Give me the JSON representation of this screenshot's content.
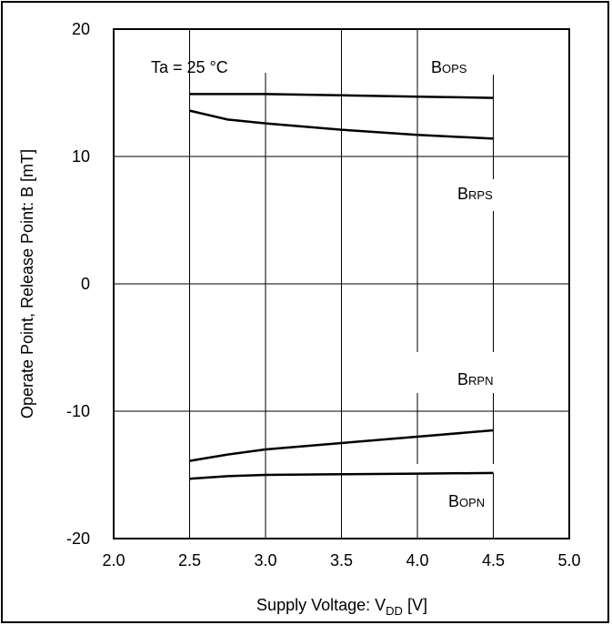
{
  "chart_data": {
    "type": "line",
    "xlabel": "Supply Voltage: V",
    "xlabel_sub": "DD",
    "xlabel_unit": " [V]",
    "ylabel": "Operate Point, Release Point: B [mT]",
    "xlim": [
      2.0,
      5.0
    ],
    "ylim": [
      -20,
      20
    ],
    "xticks": [
      2.0,
      2.5,
      3.0,
      3.5,
      4.0,
      4.5,
      5.0
    ],
    "xtick_labels": [
      "2.0",
      "2.5",
      "3.0",
      "3.5",
      "4.0",
      "4.5",
      "5.0"
    ],
    "yticks": [
      -20,
      -10,
      0,
      10,
      20
    ],
    "ytick_labels": [
      "-20",
      "-10",
      "0",
      "10",
      "20"
    ],
    "grid": true,
    "annotation": "Ta = 25 °C",
    "series": [
      {
        "name": "BOPS",
        "label_main": "B",
        "label_sub": "OPS",
        "x": [
          2.5,
          3.0,
          3.5,
          4.0,
          4.5
        ],
        "y": [
          14.9,
          14.9,
          14.8,
          14.7,
          14.6
        ]
      },
      {
        "name": "BRPS",
        "label_main": "B",
        "label_sub": "RPS",
        "x": [
          2.5,
          2.75,
          3.0,
          3.5,
          4.0,
          4.5
        ],
        "y": [
          13.6,
          12.9,
          12.6,
          12.1,
          11.7,
          11.4
        ]
      },
      {
        "name": "BRPN",
        "label_main": "B",
        "label_sub": "RPN",
        "x": [
          2.5,
          2.75,
          3.0,
          3.5,
          4.0,
          4.5
        ],
        "y": [
          -13.9,
          -13.4,
          -13.0,
          -12.5,
          -12.0,
          -11.5
        ]
      },
      {
        "name": "BOPN",
        "label_main": "B",
        "label_sub": "OPN",
        "x": [
          2.5,
          2.75,
          3.0,
          3.5,
          4.0,
          4.5
        ],
        "y": [
          -15.3,
          -15.1,
          -15.0,
          -14.95,
          -14.9,
          -14.85
        ]
      }
    ]
  }
}
